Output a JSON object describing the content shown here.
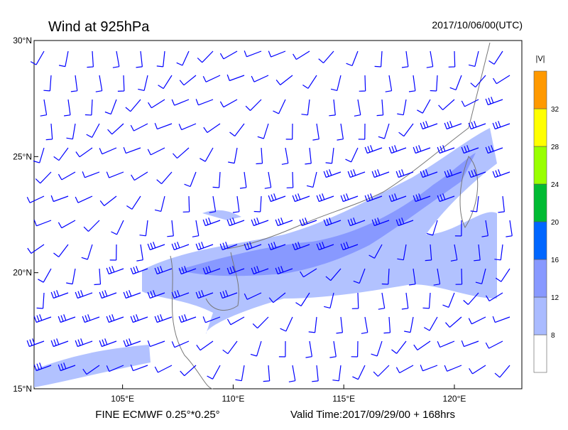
{
  "header": {
    "title": "Wind at 925hPa",
    "time": "2017/10/06/00(UTC)"
  },
  "map": {
    "lonlim": [
      101,
      123.05
    ],
    "latlim": [
      15,
      30
    ],
    "lon_ticks": [
      {
        "value": 105,
        "label": "105°E"
      },
      {
        "value": 110,
        "label": "110°E"
      },
      {
        "value": 115,
        "label": "115°E"
      },
      {
        "value": 120,
        "label": "120°E"
      }
    ],
    "lat_ticks": [
      {
        "value": 15,
        "label": "15°N"
      },
      {
        "value": 20,
        "label": "20°N"
      },
      {
        "value": 25,
        "label": "25°N"
      },
      {
        "value": 30,
        "label": "30°N"
      }
    ],
    "barb_color": "#0000ff"
  },
  "colorbar": {
    "title": "|V|",
    "ticks": [
      8,
      12,
      16,
      20,
      24,
      28,
      32
    ],
    "colors": [
      "#ffffff",
      "#aabbff",
      "#8899ff",
      "#0066ff",
      "#00bb33",
      "#99ff00",
      "#ffff00",
      "#ff9900"
    ]
  },
  "footer": {
    "model": "FINE ECMWF 0.25°*0.25°",
    "valid": "Valid Time:2017/09/29/00 + 168hrs"
  }
}
